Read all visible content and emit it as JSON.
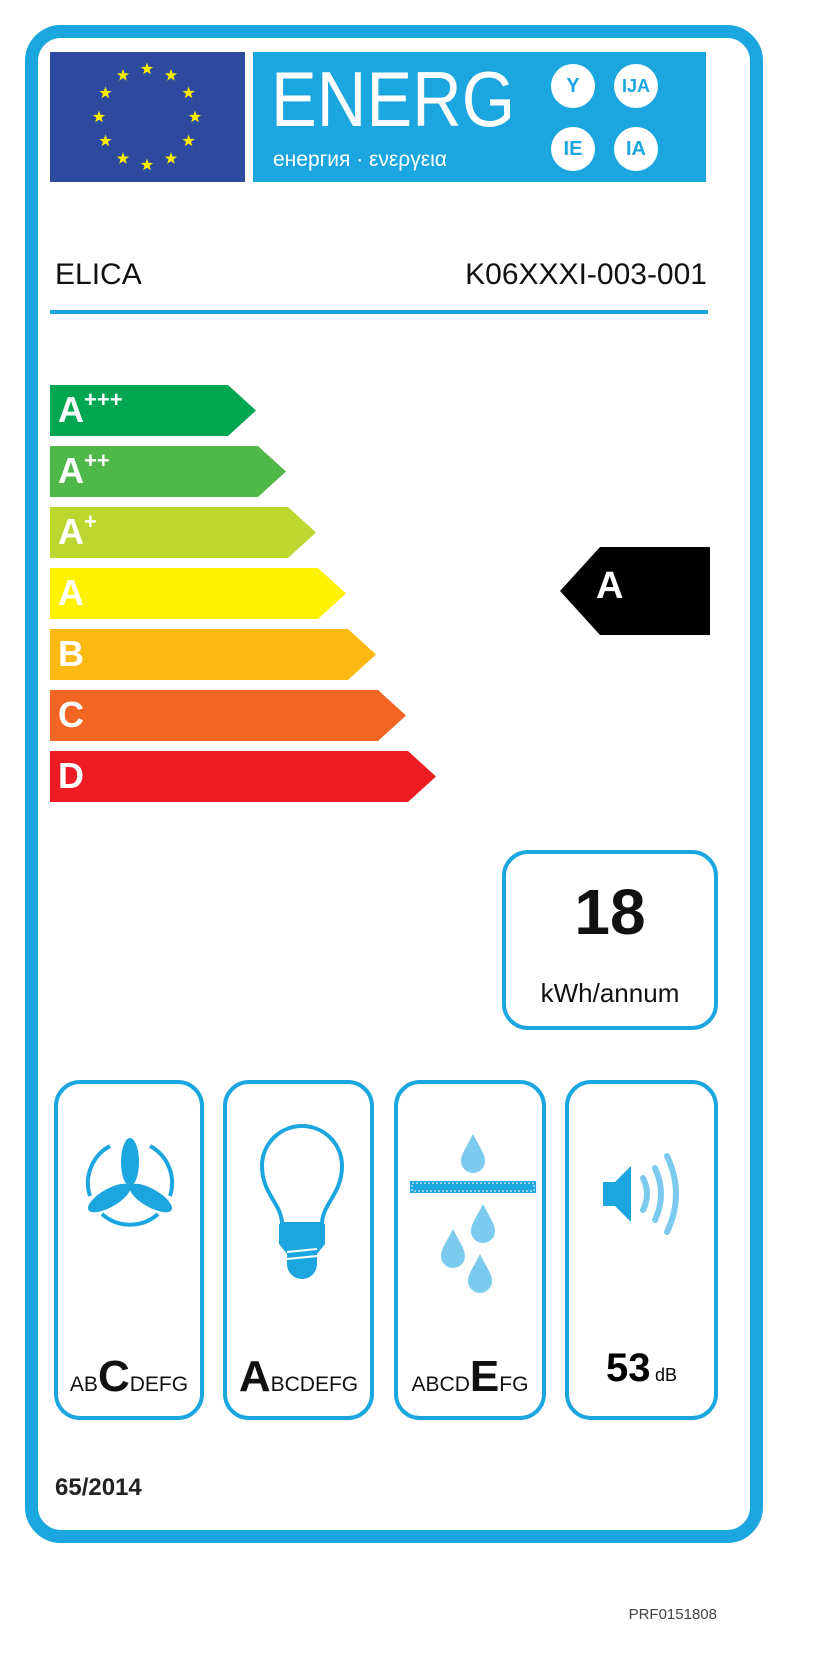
{
  "header": {
    "energy_word": "ENERG",
    "energy_subtitle": "енергия · ενεργεια",
    "language_suffixes": [
      "Y",
      "IJA",
      "IE",
      "IA"
    ]
  },
  "supplier": "ELICA",
  "model": "K06XXXI-003-001",
  "energy_classes": [
    {
      "letter": "A",
      "plus": "+++",
      "color": "#00a650"
    },
    {
      "letter": "A",
      "plus": "++",
      "color": "#50b848"
    },
    {
      "letter": "A",
      "plus": "+",
      "color": "#bed630"
    },
    {
      "letter": "A",
      "plus": "",
      "color": "#fff200"
    },
    {
      "letter": "B",
      "plus": "",
      "color": "#fcb813"
    },
    {
      "letter": "C",
      "plus": "",
      "color": "#f26522"
    },
    {
      "letter": "D",
      "plus": "",
      "color": "#ed1c24"
    }
  ],
  "rating": {
    "class": "A",
    "class_index": 3
  },
  "consumption": {
    "value": "18",
    "unit": "kWh/annum"
  },
  "pictograms": [
    {
      "icon": "fan-icon",
      "pre": "AB",
      "selected": "C",
      "post": "DEFG"
    },
    {
      "icon": "light-bulb-icon",
      "pre": "",
      "selected": "A",
      "post": "BCDEFG"
    },
    {
      "icon": "grease-filter-icon",
      "pre": "ABCD",
      "selected": "E",
      "post": "FG"
    },
    {
      "icon": "speaker-icon",
      "value": "53",
      "unit": "dB"
    }
  ],
  "regulation": "65/2014",
  "reference_code": "PRF0151808",
  "colors": {
    "accent": "#1ca6df",
    "eu_blue": "#2e4a9e",
    "star_yellow": "#ffed00"
  }
}
